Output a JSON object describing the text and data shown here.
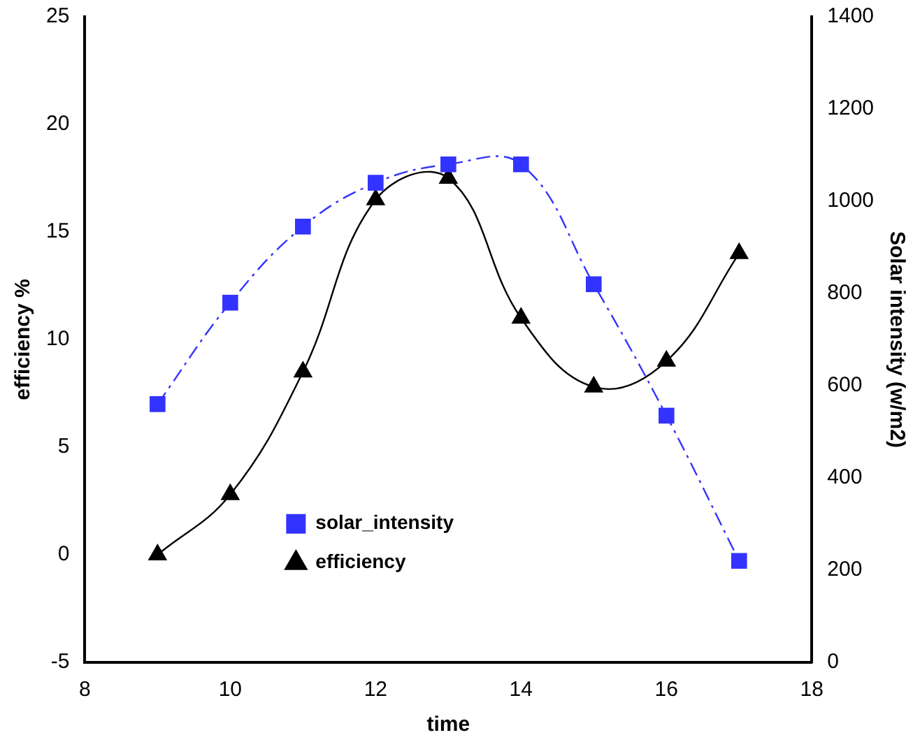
{
  "chart_data": {
    "type": "line",
    "xlabel": "time",
    "ylabel": "efficiency %",
    "y2label": "Solar intensity (w/m2)",
    "x": [
      9,
      10,
      11,
      12,
      13,
      14,
      15,
      16,
      17
    ],
    "series": [
      {
        "name": "solar_intensity",
        "color": "#3333ff",
        "axis": "y2",
        "marker": "square",
        "line_style": "dashed",
        "values": [
          560,
          780,
          945,
          1040,
          1080,
          1080,
          820,
          535,
          220
        ]
      },
      {
        "name": "efficiency",
        "color": "#000000",
        "marker": "triangle",
        "line_style": "solid",
        "values": [
          0,
          2.8,
          8.5,
          16.5,
          17.5,
          11,
          7.8,
          9,
          14
        ]
      }
    ],
    "xlim": [
      8,
      18
    ],
    "xticks": [
      8,
      10,
      12,
      14,
      16,
      18
    ],
    "ylim": [
      -5,
      25
    ],
    "yticks": [
      -5,
      0,
      5,
      10,
      15,
      20,
      25
    ],
    "y2lim": [
      0,
      1400
    ],
    "y2ticks": [
      0,
      200,
      400,
      600,
      800,
      1000,
      1200,
      1400
    ],
    "grid": false,
    "legend": "bottom"
  }
}
